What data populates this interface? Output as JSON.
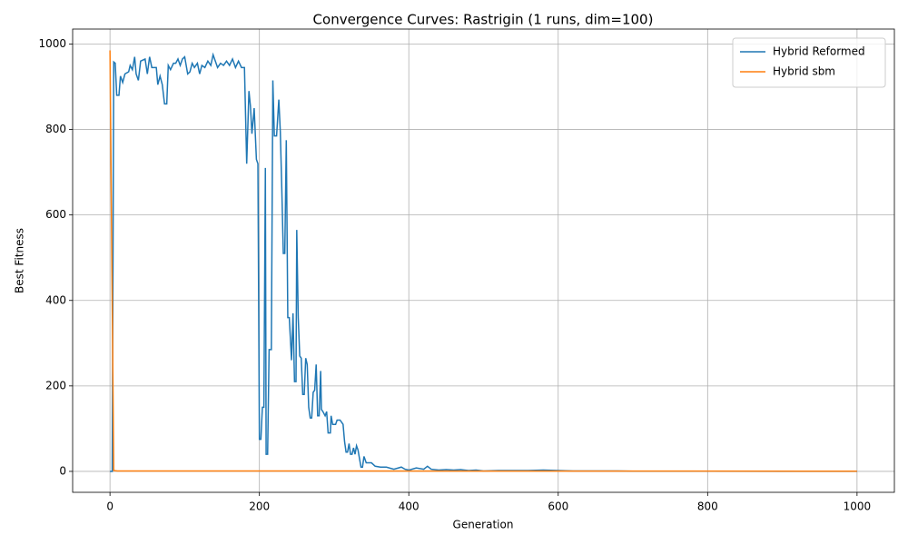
{
  "chart_data": {
    "type": "line",
    "title": "Convergence Curves: Rastrigin (1 runs, dim=100)",
    "x_label": "Generation",
    "y_label": "Best Fitness",
    "xlim": [
      -50,
      1050
    ],
    "ylim": [
      -49,
      1035
    ],
    "xticks": [
      0,
      200,
      400,
      600,
      800,
      1000
    ],
    "yticks": [
      0,
      200,
      400,
      600,
      800,
      1000
    ],
    "grid": true,
    "legend": "upper right",
    "series": [
      {
        "name": "Hybrid Reformed",
        "color": "#1f77b4",
        "x": [
          0,
          3,
          5,
          7,
          9,
          12,
          14,
          17,
          20,
          25,
          27,
          30,
          33,
          35,
          38,
          41,
          47,
          50,
          53,
          56,
          62,
          64,
          67,
          70,
          73,
          76,
          78,
          81,
          85,
          88,
          91,
          94,
          97,
          100,
          104,
          107,
          110,
          113,
          117,
          120,
          123,
          127,
          131,
          135,
          138,
          141,
          144,
          148,
          152,
          156,
          160,
          164,
          168,
          172,
          176,
          180,
          183,
          186,
          188,
          190,
          193,
          196,
          198,
          200,
          202,
          204,
          206,
          208,
          209,
          211,
          213,
          216,
          218,
          220,
          223,
          226,
          228,
          230,
          232,
          234,
          236,
          238,
          240,
          243,
          245,
          247,
          249,
          250,
          252,
          254,
          256,
          258,
          260,
          262,
          264,
          266,
          268,
          270,
          272,
          274,
          276,
          278,
          280,
          282,
          283,
          285,
          288,
          290,
          292,
          295,
          296,
          298,
          302,
          304,
          308,
          312,
          314,
          316,
          318,
          320,
          322,
          324,
          326,
          328,
          330,
          332,
          334,
          336,
          338,
          340,
          343,
          350,
          355,
          362,
          370,
          380,
          390,
          395,
          400,
          410,
          420,
          425,
          430,
          440,
          450,
          460,
          470,
          480,
          490,
          500,
          520,
          540,
          560,
          580,
          600,
          620,
          650,
          680,
          700,
          800,
          900,
          1000
        ],
        "values": [
          0,
          0,
          958,
          955,
          880,
          880,
          925,
          910,
          930,
          935,
          950,
          940,
          970,
          930,
          915,
          960,
          965,
          930,
          970,
          945,
          945,
          905,
          925,
          905,
          860,
          860,
          950,
          940,
          955,
          955,
          965,
          950,
          965,
          970,
          930,
          935,
          955,
          945,
          955,
          930,
          950,
          945,
          960,
          950,
          975,
          960,
          945,
          955,
          950,
          960,
          950,
          965,
          945,
          960,
          945,
          945,
          720,
          890,
          855,
          790,
          850,
          730,
          720,
          75,
          75,
          150,
          150,
          710,
          40,
          40,
          285,
          285,
          915,
          785,
          785,
          870,
          795,
          660,
          510,
          510,
          775,
          360,
          360,
          260,
          370,
          210,
          210,
          565,
          360,
          270,
          265,
          180,
          180,
          265,
          250,
          150,
          125,
          125,
          185,
          190,
          250,
          130,
          130,
          235,
          145,
          140,
          130,
          140,
          90,
          90,
          130,
          110,
          110,
          120,
          120,
          110,
          70,
          45,
          45,
          65,
          40,
          40,
          55,
          40,
          60,
          50,
          30,
          10,
          10,
          35,
          20,
          20,
          12,
          10,
          10,
          5,
          10,
          5,
          3,
          8,
          5,
          12,
          5,
          3,
          4,
          3,
          4,
          2,
          3,
          1,
          2,
          2,
          2,
          3,
          2,
          1,
          1,
          1,
          0.5,
          0.3,
          0.2,
          0.2
        ]
      },
      {
        "name": "Hybrid sbm",
        "color": "#ff7f0e",
        "x": [
          0,
          5,
          10,
          1000
        ],
        "values": [
          985,
          2,
          1,
          0.5
        ]
      }
    ]
  }
}
